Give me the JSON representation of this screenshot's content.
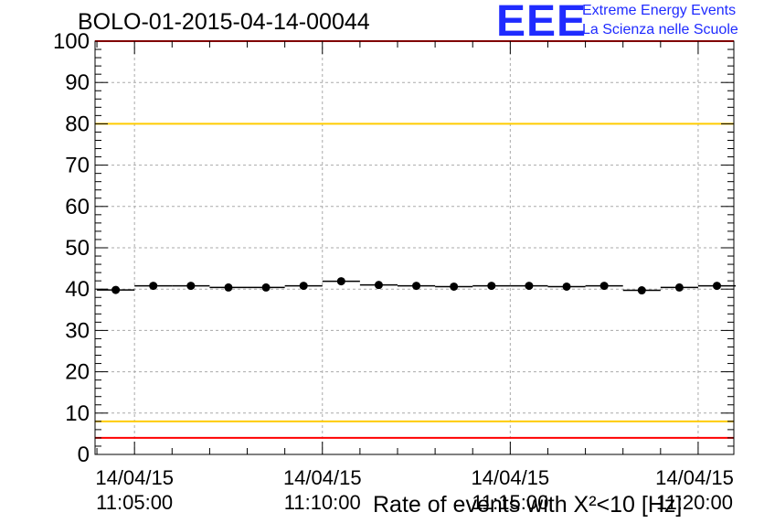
{
  "header": {
    "title": "BOLO-01-2015-04-14-00044",
    "logo_text": "EEE",
    "org_line1": "Extreme Energy Events",
    "org_line2": "La Scienza nelle Scuole"
  },
  "colors": {
    "accent_blue": "#1f2bff",
    "red_line": "#ff0000",
    "yellow_line": "#ffcc00",
    "grid": "#aaaaaa"
  },
  "chart_data": {
    "type": "scatter",
    "title": "BOLO-01-2015-04-14-00044",
    "xlabel": "Rate of events with X²<10 [Hz]",
    "ylabel": "",
    "ylim": [
      0,
      100
    ],
    "y_ticks": [
      0,
      10,
      20,
      30,
      40,
      50,
      60,
      70,
      80,
      90,
      100
    ],
    "grid": true,
    "x_unit": "minutes after 11:00:00",
    "xlim": [
      3.95,
      20.95
    ],
    "x_tick_labels": [
      {
        "date": "14/04/15",
        "time": "11:05:00",
        "minute": 5
      },
      {
        "date": "14/04/15",
        "time": "11:10:00",
        "minute": 10
      },
      {
        "date": "14/04/15",
        "time": "11:15:00",
        "minute": 15
      },
      {
        "date": "14/04/15",
        "time": "11:20:00",
        "minute": 20
      }
    ],
    "reference_lines": [
      {
        "y": 100,
        "color": "#ff0000"
      },
      {
        "y": 80,
        "color": "#ffcc00"
      },
      {
        "y": 8,
        "color": "#ffcc00"
      },
      {
        "y": 4,
        "color": "#ff0000"
      }
    ],
    "series": [
      {
        "x": [
          4.5,
          5.5,
          6.5,
          7.5,
          8.5,
          9.5,
          10.5,
          11.5,
          12.5,
          13.5,
          14.5,
          15.5,
          16.5,
          17.5,
          18.5,
          19.5,
          20.5
        ],
        "y": [
          39.8,
          40.8,
          40.8,
          40.4,
          40.4,
          40.8,
          41.9,
          41.0,
          40.8,
          40.6,
          40.8,
          40.8,
          40.6,
          40.8,
          39.7,
          40.4,
          40.8
        ],
        "bin_half_width": 0.5
      }
    ]
  }
}
